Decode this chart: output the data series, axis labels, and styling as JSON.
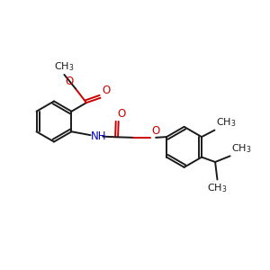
{
  "bg_color": "#ffffff",
  "bond_color": "#1a1a1a",
  "oxygen_color": "#cc0000",
  "nitrogen_color": "#0000cc",
  "line_width": 1.4,
  "font_size": 8.5,
  "fig_size": [
    3.0,
    3.0
  ],
  "dpi": 100,
  "xlim": [
    0,
    10
  ],
  "ylim": [
    0,
    10
  ]
}
